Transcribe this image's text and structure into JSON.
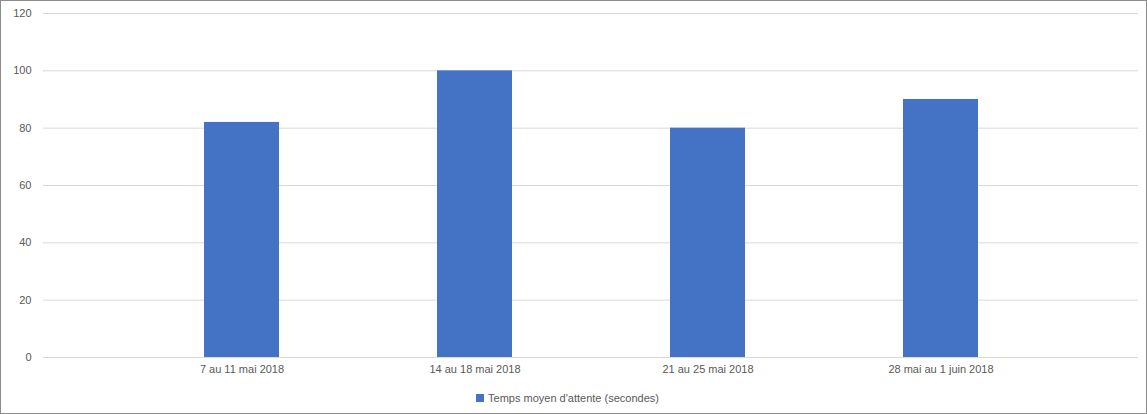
{
  "chart_data": {
    "type": "bar",
    "categories": [
      "7 au 11 mai 2018",
      "14 au 18 mai 2018",
      "21 au 25 mai 2018",
      "28 mai au 1 juin 2018"
    ],
    "series": [
      {
        "name": "Temps moyen d'attente (secondes)",
        "color": "#4472c4",
        "values": [
          82,
          100,
          80,
          90
        ]
      }
    ],
    "ylim": [
      0,
      120
    ],
    "yticks": [
      0,
      20,
      40,
      60,
      80,
      100,
      120
    ],
    "grid": true,
    "legend": "bottom"
  }
}
